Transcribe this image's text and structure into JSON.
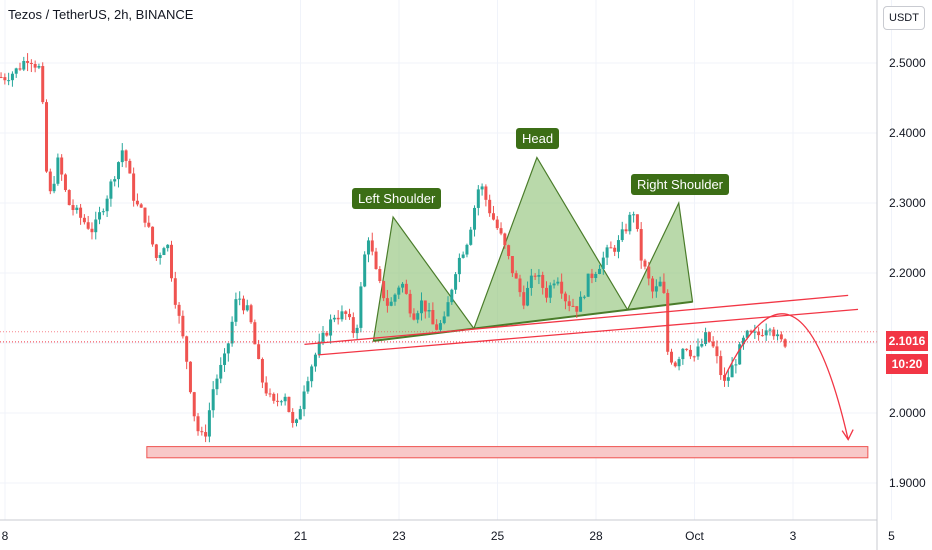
{
  "header": {
    "title": "Tezos / TetherUS, 2h, BINANCE",
    "currency": "USDT"
  },
  "annotations": {
    "left_shoulder": "Left Shoulder",
    "head": "Head",
    "right_shoulder": "Right Shoulder"
  },
  "price_tag": {
    "price": "2.1016",
    "countdown": "10:20"
  },
  "colors": {
    "up": "#26a69a",
    "down": "#ef5350",
    "pattern_fill": "#93c47d",
    "label_bg": "#3c6e16",
    "price_tag": "#f23645"
  },
  "chart_data": {
    "type": "candlestick",
    "symbol": "XTZ/USDT",
    "timeframe": "2h",
    "exchange": "BINANCE",
    "y_ticks": [
      2.5,
      2.4,
      2.3,
      2.2,
      2.1,
      2.0,
      1.9
    ],
    "y_tick_labels": [
      "2.5000",
      "2.4000",
      "2.3000",
      "2.2000",
      "2.1000",
      "2.0000",
      "1.9000"
    ],
    "ylim": [
      1.88,
      2.56
    ],
    "x_ticks": [
      "8",
      "21",
      "23",
      "25",
      "28",
      "Oct",
      "3",
      "5"
    ],
    "x_tick_positions": [
      0,
      15,
      20,
      25,
      30,
      35,
      40,
      45
    ],
    "last_price": 2.1016,
    "close_path": [
      [
        0,
        2.48
      ],
      [
        0.6,
        2.49
      ],
      [
        1.2,
        2.51
      ],
      [
        1.8,
        2.49
      ],
      [
        2.2,
        2.3
      ],
      [
        2.7,
        2.36
      ],
      [
        3.2,
        2.3
      ],
      [
        3.8,
        2.28
      ],
      [
        4.5,
        2.26
      ],
      [
        5.3,
        2.32
      ],
      [
        6.0,
        2.38
      ],
      [
        6.6,
        2.3
      ],
      [
        7.1,
        2.28
      ],
      [
        7.7,
        2.22
      ],
      [
        8.2,
        2.25
      ],
      [
        8.6,
        2.17
      ],
      [
        9.2,
        2.08
      ],
      [
        9.7,
        1.98
      ],
      [
        10.1,
        1.96
      ],
      [
        10.6,
        2.04
      ],
      [
        11.2,
        2.08
      ],
      [
        11.8,
        2.17
      ],
      [
        12.4,
        2.14
      ],
      [
        13.0,
        2.05
      ],
      [
        13.6,
        2.01
      ],
      [
        14.2,
        2.03
      ],
      [
        14.7,
        1.97
      ],
      [
        15.2,
        2.04
      ],
      [
        15.7,
        2.08
      ],
      [
        16.2,
        2.11
      ],
      [
        16.7,
        2.14
      ],
      [
        17.3,
        2.14
      ],
      [
        17.8,
        2.11
      ],
      [
        18.4,
        2.26
      ],
      [
        18.9,
        2.19
      ],
      [
        19.5,
        2.15
      ],
      [
        20.1,
        2.19
      ],
      [
        20.7,
        2.14
      ],
      [
        21.2,
        2.16
      ],
      [
        21.8,
        2.12
      ],
      [
        22.3,
        2.13
      ],
      [
        22.9,
        2.21
      ],
      [
        23.5,
        2.25
      ],
      [
        24.1,
        2.33
      ],
      [
        24.6,
        2.29
      ],
      [
        25.2,
        2.25
      ],
      [
        25.8,
        2.2
      ],
      [
        26.3,
        2.16
      ],
      [
        26.9,
        2.2
      ],
      [
        27.5,
        2.17
      ],
      [
        28.0,
        2.2
      ],
      [
        28.5,
        2.16
      ],
      [
        29.1,
        2.15
      ],
      [
        29.6,
        2.19
      ],
      [
        30.1,
        2.21
      ],
      [
        30.6,
        2.23
      ],
      [
        31.1,
        2.24
      ],
      [
        31.6,
        2.27
      ],
      [
        31.9,
        2.29
      ],
      [
        32.3,
        2.22
      ],
      [
        32.9,
        2.17
      ],
      [
        33.4,
        2.19
      ],
      [
        33.6,
        2.09
      ],
      [
        34.0,
        2.07
      ],
      [
        34.5,
        2.1
      ],
      [
        35.0,
        2.08
      ],
      [
        35.6,
        2.11
      ],
      [
        36.0,
        2.09
      ],
      [
        36.5,
        2.04
      ],
      [
        37.0,
        2.07
      ],
      [
        37.6,
        2.11
      ],
      [
        38.2,
        2.11
      ],
      [
        38.8,
        2.13
      ],
      [
        39.3,
        2.1
      ],
      [
        39.6,
        2.1016
      ]
    ],
    "annotations": [
      {
        "type": "head-and-shoulders",
        "labels": [
          "Left Shoulder",
          "Head",
          "Right Shoulder"
        ]
      },
      {
        "type": "support-zone",
        "range": [
          1.936,
          1.952
        ]
      },
      {
        "type": "projected-drop",
        "target": 1.96
      }
    ]
  }
}
